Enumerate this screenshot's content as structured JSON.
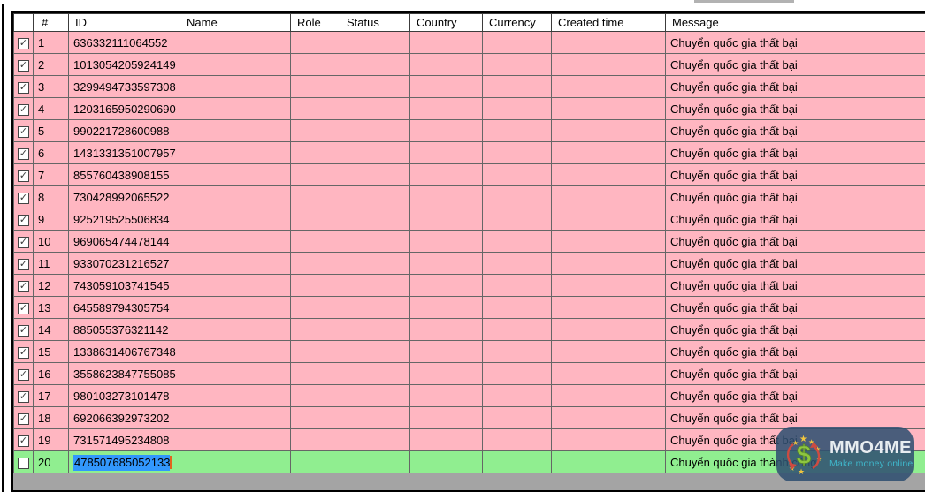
{
  "grid": {
    "columns": [
      {
        "id": "select",
        "label": ""
      },
      {
        "id": "index",
        "label": "#"
      },
      {
        "id": "id",
        "label": "ID"
      },
      {
        "id": "name",
        "label": "Name"
      },
      {
        "id": "role",
        "label": "Role"
      },
      {
        "id": "status",
        "label": "Status"
      },
      {
        "id": "country",
        "label": "Country"
      },
      {
        "id": "currency",
        "label": "Currency"
      },
      {
        "id": "created_time",
        "label": "Created time"
      },
      {
        "id": "message",
        "label": "Message"
      }
    ],
    "rows": [
      {
        "index": "1",
        "id": "636332111064552",
        "name": "",
        "role": "",
        "status": "",
        "country": "",
        "currency": "",
        "created_time": "",
        "message": "Chuyển quốc gia thất bại",
        "checked": true,
        "result": "fail"
      },
      {
        "index": "2",
        "id": "1013054205924149",
        "name": "",
        "role": "",
        "status": "",
        "country": "",
        "currency": "",
        "created_time": "",
        "message": "Chuyển quốc gia thất bại",
        "checked": true,
        "result": "fail"
      },
      {
        "index": "3",
        "id": "3299494733597308",
        "name": "",
        "role": "",
        "status": "",
        "country": "",
        "currency": "",
        "created_time": "",
        "message": "Chuyển quốc gia thất bại",
        "checked": true,
        "result": "fail"
      },
      {
        "index": "4",
        "id": "1203165950290690",
        "name": "",
        "role": "",
        "status": "",
        "country": "",
        "currency": "",
        "created_time": "",
        "message": "Chuyển quốc gia thất bại",
        "checked": true,
        "result": "fail"
      },
      {
        "index": "5",
        "id": "990221728600988",
        "name": "",
        "role": "",
        "status": "",
        "country": "",
        "currency": "",
        "created_time": "",
        "message": "Chuyển quốc gia thất bại",
        "checked": true,
        "result": "fail"
      },
      {
        "index": "6",
        "id": "1431331351007957",
        "name": "",
        "role": "",
        "status": "",
        "country": "",
        "currency": "",
        "created_time": "",
        "message": "Chuyển quốc gia thất bại",
        "checked": true,
        "result": "fail"
      },
      {
        "index": "7",
        "id": "855760438908155",
        "name": "",
        "role": "",
        "status": "",
        "country": "",
        "currency": "",
        "created_time": "",
        "message": "Chuyển quốc gia thất bại",
        "checked": true,
        "result": "fail"
      },
      {
        "index": "8",
        "id": "730428992065522",
        "name": "",
        "role": "",
        "status": "",
        "country": "",
        "currency": "",
        "created_time": "",
        "message": "Chuyển quốc gia thất bại",
        "checked": true,
        "result": "fail"
      },
      {
        "index": "9",
        "id": "925219525506834",
        "name": "",
        "role": "",
        "status": "",
        "country": "",
        "currency": "",
        "created_time": "",
        "message": "Chuyển quốc gia thất bại",
        "checked": true,
        "result": "fail"
      },
      {
        "index": "10",
        "id": "969065474478144",
        "name": "",
        "role": "",
        "status": "",
        "country": "",
        "currency": "",
        "created_time": "",
        "message": "Chuyển quốc gia thất bại",
        "checked": true,
        "result": "fail"
      },
      {
        "index": "11",
        "id": "933070231216527",
        "name": "",
        "role": "",
        "status": "",
        "country": "",
        "currency": "",
        "created_time": "",
        "message": "Chuyển quốc gia thất bại",
        "checked": true,
        "result": "fail"
      },
      {
        "index": "12",
        "id": "743059103741545",
        "name": "",
        "role": "",
        "status": "",
        "country": "",
        "currency": "",
        "created_time": "",
        "message": "Chuyển quốc gia thất bại",
        "checked": true,
        "result": "fail"
      },
      {
        "index": "13",
        "id": "645589794305754",
        "name": "",
        "role": "",
        "status": "",
        "country": "",
        "currency": "",
        "created_time": "",
        "message": "Chuyển quốc gia thất bại",
        "checked": true,
        "result": "fail"
      },
      {
        "index": "14",
        "id": "885055376321142",
        "name": "",
        "role": "",
        "status": "",
        "country": "",
        "currency": "",
        "created_time": "",
        "message": "Chuyển quốc gia thất bại",
        "checked": true,
        "result": "fail"
      },
      {
        "index": "15",
        "id": "1338631406767348",
        "name": "",
        "role": "",
        "status": "",
        "country": "",
        "currency": "",
        "created_time": "",
        "message": "Chuyển quốc gia thất bại",
        "checked": true,
        "result": "fail"
      },
      {
        "index": "16",
        "id": "3558623847755085",
        "name": "",
        "role": "",
        "status": "",
        "country": "",
        "currency": "",
        "created_time": "",
        "message": "Chuyển quốc gia thất bại",
        "checked": true,
        "result": "fail"
      },
      {
        "index": "17",
        "id": "980103273101478",
        "name": "",
        "role": "",
        "status": "",
        "country": "",
        "currency": "",
        "created_time": "",
        "message": "Chuyển quốc gia thất bại",
        "checked": true,
        "result": "fail"
      },
      {
        "index": "18",
        "id": "692066392973202",
        "name": "",
        "role": "",
        "status": "",
        "country": "",
        "currency": "",
        "created_time": "",
        "message": "Chuyển quốc gia thất bại",
        "checked": true,
        "result": "fail"
      },
      {
        "index": "19",
        "id": "731571495234808",
        "name": "",
        "role": "",
        "status": "",
        "country": "",
        "currency": "",
        "created_time": "",
        "message": "Chuyển quốc gia thất bại",
        "checked": true,
        "result": "fail"
      },
      {
        "index": "20",
        "id": "478507685052133",
        "name": "",
        "role": "",
        "status": "",
        "country": "",
        "currency": "",
        "created_time": "",
        "message": "Chuyển quốc gia thành công",
        "checked": false,
        "result": "success",
        "id_text_selected": true
      }
    ],
    "colors": {
      "fail_row_bg": "#ffb6c1",
      "success_row_bg": "#90ee90",
      "text_selection_bg": "#3297fd",
      "caret_color": "#e2641f",
      "empty_area_bg": "#a4a4a4",
      "grid_line": "#666666",
      "outer_border": "#000000"
    }
  },
  "watermark": {
    "title": "MMO4ME",
    "subtitle": "Make money online",
    "title_color": "#e7ecf0",
    "subtitle_color": "#3fb6ca",
    "badge_bg": "rgba(47,79,112,0.87)",
    "icon": "dollar-stars-logo"
  }
}
